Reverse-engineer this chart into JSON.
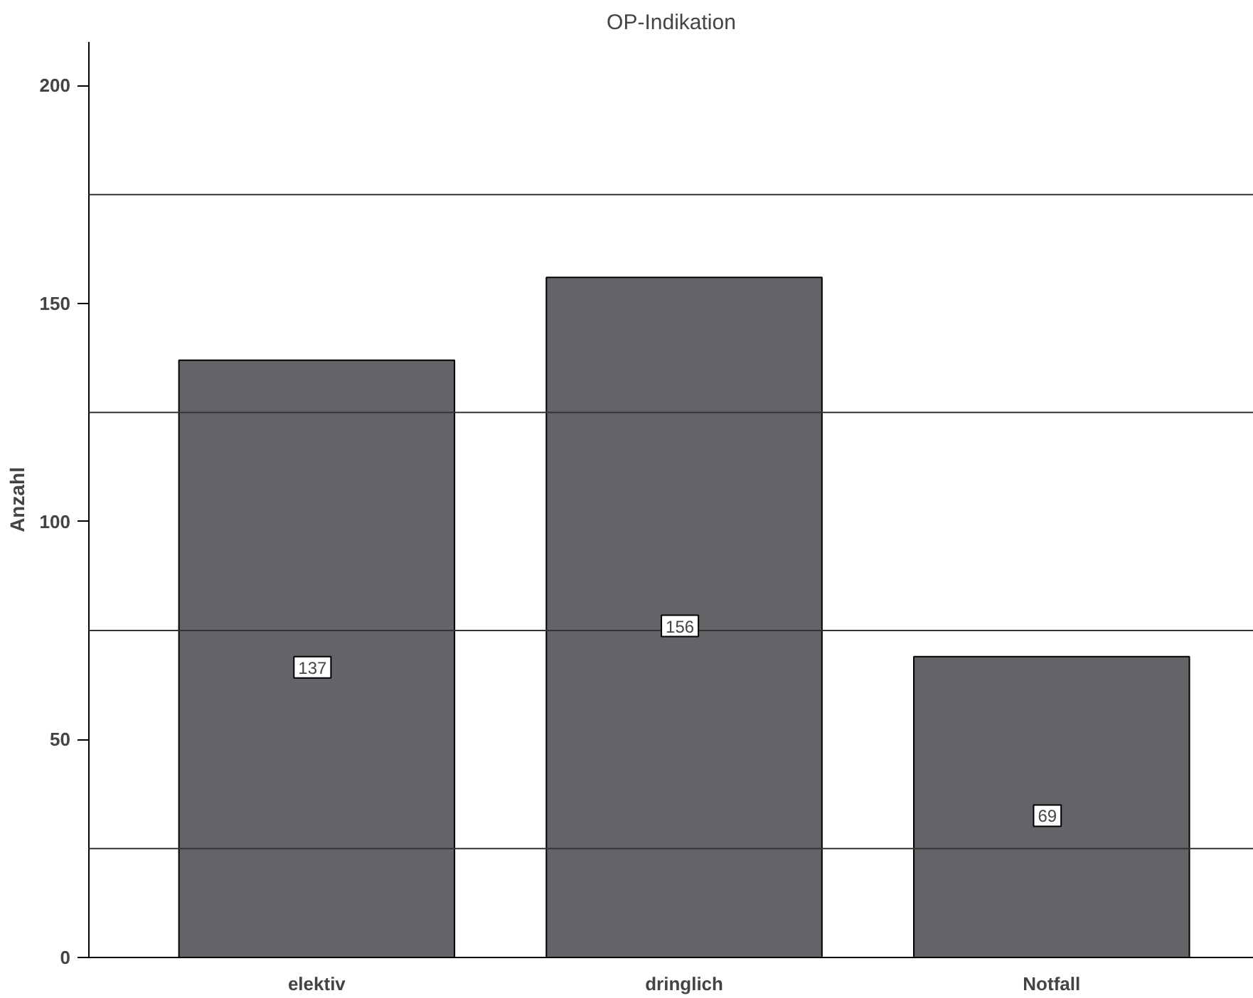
{
  "chart_data": {
    "type": "bar",
    "title": "OP-Indikation",
    "ylabel": "Anzahl",
    "categories": [
      "elektiv",
      "dringlich",
      "Notfall"
    ],
    "values": [
      137,
      156,
      69
    ],
    "color": "#636468",
    "ylim": [
      0,
      210
    ],
    "yticks": [
      0,
      50,
      100,
      150,
      200
    ],
    "ref_lines": [
      {
        "axis": "y",
        "value": 25,
        "label": null
      },
      {
        "axis": "y",
        "value": 75,
        "label": null
      },
      {
        "axis": "y",
        "value": 125,
        "label": null
      },
      {
        "axis": "y",
        "value": 175,
        "label": null
      }
    ],
    "data_labels": true
  }
}
